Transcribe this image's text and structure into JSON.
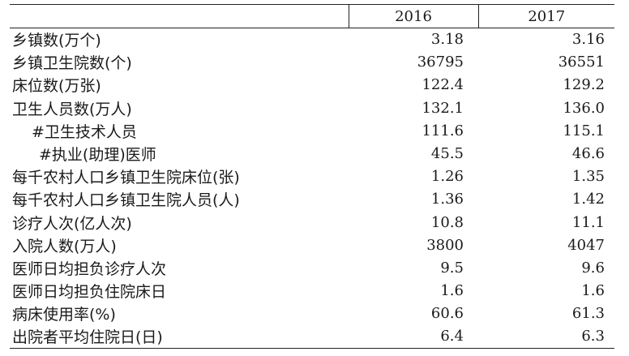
{
  "table": {
    "columns": [
      "",
      "2016",
      "2017"
    ],
    "rows": [
      {
        "label": "乡镇数(万个)",
        "indent": 0,
        "v2016": "3.18",
        "v2017": "3.16"
      },
      {
        "label": "乡镇卫生院数(个)",
        "indent": 0,
        "v2016": "36795",
        "v2017": "36551"
      },
      {
        "label": "床位数(万张)",
        "indent": 0,
        "v2016": "122.4",
        "v2017": "129.2"
      },
      {
        "label": "卫生人员数(万人)",
        "indent": 0,
        "v2016": "132.1",
        "v2017": "136.0"
      },
      {
        "label": "#卫生技术人员",
        "indent": 1,
        "v2016": "111.6",
        "v2017": "115.1"
      },
      {
        "label": "#执业(助理)医师",
        "indent": 2,
        "v2016": "45.5",
        "v2017": "46.6"
      },
      {
        "label": "每千农村人口乡镇卫生院床位(张)",
        "indent": 0,
        "v2016": "1.26",
        "v2017": "1.35"
      },
      {
        "label": "每千农村人口乡镇卫生院人员(人)",
        "indent": 0,
        "v2016": "1.36",
        "v2017": "1.42"
      },
      {
        "label": "诊疗人次(亿人次)",
        "indent": 0,
        "v2016": "10.8",
        "v2017": "11.1"
      },
      {
        "label": "入院人数(万人)",
        "indent": 0,
        "v2016": "3800",
        "v2017": "4047"
      },
      {
        "label": "医师日均担负诊疗人次",
        "indent": 0,
        "v2016": "9.5",
        "v2017": "9.6"
      },
      {
        "label": "医师日均担负住院床日",
        "indent": 0,
        "v2016": "1.6",
        "v2017": "1.6"
      },
      {
        "label": "病床使用率(%)",
        "indent": 0,
        "v2016": "60.6",
        "v2017": "61.3"
      },
      {
        "label": "出院者平均住院日(日)",
        "indent": 0,
        "v2016": "6.4",
        "v2017": "6.3"
      }
    ]
  }
}
